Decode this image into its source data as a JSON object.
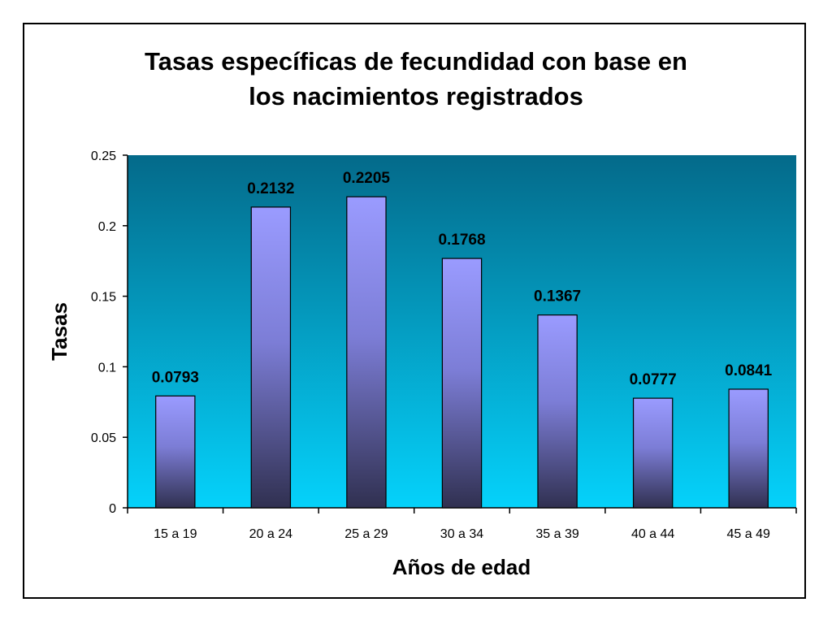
{
  "chart_data": {
    "type": "bar",
    "title_line1": "Tasas específicas de fecundidad con base en",
    "title_line2": "los nacimientos registrados",
    "xlabel": "Años de edad",
    "ylabel": "Tasas",
    "categories": [
      "15 a 19",
      "20 a 24",
      "25 a 29",
      "30 a 34",
      "35 a 39",
      "40 a 44",
      "45 a 49"
    ],
    "values": [
      0.0793,
      0.2132,
      0.2205,
      0.1768,
      0.1367,
      0.0777,
      0.0841
    ],
    "data_labels": [
      "0.0793",
      "0.2132",
      "0.2205",
      "0.1768",
      "0.1367",
      "0.0777",
      "0.0841"
    ],
    "ylim": [
      0,
      0.25
    ],
    "yticks": [
      0,
      0.05,
      0.1,
      0.15,
      0.2,
      0.25
    ],
    "ytick_labels": [
      "0",
      "0.05",
      "0.1",
      "0.15",
      "0.2",
      "0.25"
    ],
    "grid": false,
    "legend": "none",
    "colors": {
      "plot_bg_top": "#046a8a",
      "plot_bg_bottom": "#05d2fb",
      "bar_top": "#9a9bff",
      "bar_bottom": "#303050"
    }
  }
}
